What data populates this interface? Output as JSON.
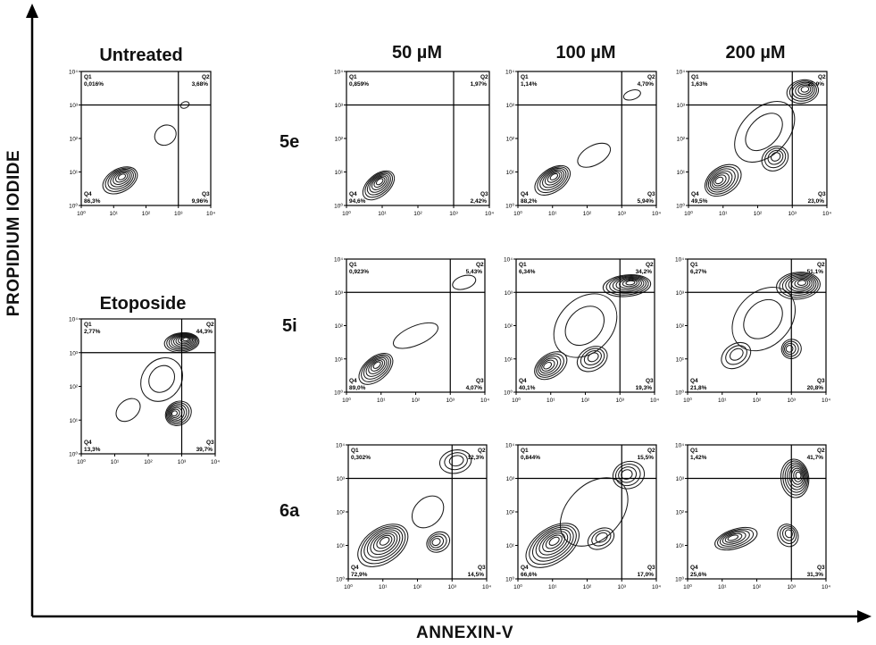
{
  "figure": {
    "x_axis_title": "ANNEXIN-V",
    "y_axis_title": "PROPIDIUM IODIDE",
    "column_headers": [
      "50 µM",
      "100 µM",
      "200 µM"
    ],
    "row_labels": [
      "5e",
      "5i",
      "6a"
    ],
    "control_labels": [
      "Untreated",
      "Etoposide"
    ],
    "colors": {
      "axis": "#000000",
      "contour": "#1a1a1a",
      "background": "#ffffff"
    }
  },
  "chart_data": [
    {
      "type": "contour",
      "panel": "untreated",
      "title": "Untreated",
      "x_ticks": [
        "10⁰",
        "10¹",
        "10²",
        "10³",
        "10⁴"
      ],
      "y_ticks": [
        "10⁰",
        "10¹",
        "10²",
        "10³",
        "10⁴"
      ],
      "x_scale": "log",
      "y_scale": "log",
      "xlim": [
        1,
        10000
      ],
      "ylim": [
        1,
        10000
      ],
      "gate": {
        "x": 1000,
        "y": 1000
      },
      "quadrants": {
        "Q1": "0,016%",
        "Q2": "3,68%",
        "Q3": "9,96%",
        "Q4": "86,3%"
      },
      "populations": [
        {
          "x": 1.2,
          "y": 0.75,
          "sx": 0.5,
          "sy": 0.3,
          "levels": 7,
          "rot": 0.5
        },
        {
          "x": 2.6,
          "y": 2.1,
          "sx": 0.3,
          "sy": 0.25,
          "levels": 1,
          "rot": 0.6
        },
        {
          "x": 3.2,
          "y": 3.0,
          "sx": 0.12,
          "sy": 0.08,
          "levels": 1,
          "rot": 0.4
        }
      ]
    },
    {
      "type": "contour",
      "panel": "etoposide",
      "title": "Etoposide",
      "x_ticks": [
        "10⁰",
        "10¹",
        "10²",
        "10³",
        "10⁴"
      ],
      "y_ticks": [
        "10⁰",
        "10¹",
        "10²",
        "10³",
        "10⁴"
      ],
      "x_scale": "log",
      "y_scale": "log",
      "xlim": [
        1,
        10000
      ],
      "ylim": [
        1,
        10000
      ],
      "gate": {
        "x": 1000,
        "y": 1000
      },
      "quadrants": {
        "Q1": "2,77%",
        "Q2": "44,3%",
        "Q3": "39,7%",
        "Q4": "13,3%"
      },
      "populations": [
        {
          "x": 3.0,
          "y": 3.3,
          "sx": 0.45,
          "sy": 0.25,
          "levels": 9,
          "rot": 0.1
        },
        {
          "x": 2.9,
          "y": 1.2,
          "sx": 0.35,
          "sy": 0.3,
          "levels": 7,
          "rot": 0.6
        },
        {
          "x": 2.4,
          "y": 2.2,
          "sx": 0.6,
          "sy": 0.5,
          "levels": 2,
          "rot": 0.9
        },
        {
          "x": 1.4,
          "y": 1.3,
          "sx": 0.35,
          "sy": 0.25,
          "levels": 1,
          "rot": 0.7
        }
      ]
    },
    {
      "type": "contour",
      "panel": "5e-50",
      "row": "5e",
      "column": "50 µM",
      "x_ticks": [
        "10⁰",
        "10¹",
        "10²",
        "10³",
        "10⁴"
      ],
      "y_ticks": [
        "10⁰",
        "10¹",
        "10²",
        "10³",
        "10⁴"
      ],
      "x_scale": "log",
      "y_scale": "log",
      "xlim": [
        1,
        10000
      ],
      "ylim": [
        1,
        10000
      ],
      "gate": {
        "x": 1000,
        "y": 1000
      },
      "quadrants": {
        "Q1": "0,859%",
        "Q2": "1,97%",
        "Q3": "2,42%",
        "Q4": "94,6%"
      },
      "populations": [
        {
          "x": 0.9,
          "y": 0.6,
          "sx": 0.45,
          "sy": 0.28,
          "levels": 7,
          "rot": 0.7
        }
      ]
    },
    {
      "type": "contour",
      "panel": "5e-100",
      "row": "5e",
      "column": "100 µM",
      "x_ticks": [
        "10⁰",
        "10¹",
        "10²",
        "10³",
        "10⁴"
      ],
      "y_ticks": [
        "10⁰",
        "10¹",
        "10²",
        "10³",
        "10⁴"
      ],
      "x_scale": "log",
      "y_scale": "log",
      "xlim": [
        1,
        10000
      ],
      "ylim": [
        1,
        10000
      ],
      "gate": {
        "x": 1000,
        "y": 1000
      },
      "quadrants": {
        "Q1": "1,14%",
        "Q2": "4,70%",
        "Q3": "5,94%",
        "Q4": "88,2%"
      },
      "populations": [
        {
          "x": 1.0,
          "y": 0.75,
          "sx": 0.5,
          "sy": 0.3,
          "levels": 7,
          "rot": 0.6
        },
        {
          "x": 2.2,
          "y": 1.5,
          "sx": 0.45,
          "sy": 0.25,
          "levels": 1,
          "rot": 0.5
        },
        {
          "x": 3.3,
          "y": 3.3,
          "sx": 0.22,
          "sy": 0.12,
          "levels": 1,
          "rot": 0.3
        }
      ]
    },
    {
      "type": "contour",
      "panel": "5e-200",
      "row": "5e",
      "column": "200 µM",
      "x_ticks": [
        "10⁰",
        "10¹",
        "10²",
        "10³",
        "10⁴"
      ],
      "y_ticks": [
        "10⁰",
        "10¹",
        "10²",
        "10³",
        "10⁴"
      ],
      "x_scale": "log",
      "y_scale": "log",
      "xlim": [
        1,
        10000
      ],
      "ylim": [
        1,
        10000
      ],
      "gate": {
        "x": 1000,
        "y": 1000
      },
      "quadrants": {
        "Q1": "1,63%",
        "Q2": "25,9%",
        "Q3": "23,0%",
        "Q4": "49,5%"
      },
      "populations": [
        {
          "x": 3.3,
          "y": 3.4,
          "sx": 0.4,
          "sy": 0.3,
          "levels": 6,
          "rot": 0.2
        },
        {
          "x": 1.0,
          "y": 0.75,
          "sx": 0.5,
          "sy": 0.35,
          "levels": 7,
          "rot": 0.6
        },
        {
          "x": 2.5,
          "y": 1.4,
          "sx": 0.35,
          "sy": 0.3,
          "levels": 4,
          "rot": 0.6
        },
        {
          "x": 2.2,
          "y": 2.2,
          "sx": 0.9,
          "sy": 0.6,
          "levels": 2,
          "rot": 0.8
        }
      ]
    },
    {
      "type": "contour",
      "panel": "5i-50",
      "row": "5i",
      "column": "50 µM",
      "x_ticks": [
        "10⁰",
        "10¹",
        "10²",
        "10³",
        "10⁴"
      ],
      "y_ticks": [
        "10⁰",
        "10¹",
        "10²",
        "10³",
        "10⁴"
      ],
      "x_scale": "log",
      "y_scale": "log",
      "xlim": [
        1,
        10000
      ],
      "ylim": [
        1,
        10000
      ],
      "gate": {
        "x": 1000,
        "y": 1000
      },
      "quadrants": {
        "Q1": "0,923%",
        "Q2": "5,43%",
        "Q3": "4,07%",
        "Q4": "89,0%"
      },
      "populations": [
        {
          "x": 0.85,
          "y": 0.7,
          "sx": 0.5,
          "sy": 0.3,
          "levels": 7,
          "rot": 0.7
        },
        {
          "x": 2.0,
          "y": 1.7,
          "sx": 0.6,
          "sy": 0.25,
          "levels": 1,
          "rot": 0.4
        },
        {
          "x": 3.4,
          "y": 3.3,
          "sx": 0.3,
          "sy": 0.17,
          "levels": 1,
          "rot": 0.3
        }
      ]
    },
    {
      "type": "contour",
      "panel": "5i-100",
      "row": "5i",
      "column": "100 µM",
      "x_ticks": [
        "10⁰",
        "10¹",
        "10²",
        "10³",
        "10⁴"
      ],
      "y_ticks": [
        "10⁰",
        "10¹",
        "10²",
        "10³",
        "10⁴"
      ],
      "x_scale": "log",
      "y_scale": "log",
      "xlim": [
        1,
        10000
      ],
      "ylim": [
        1,
        10000
      ],
      "gate": {
        "x": 1000,
        "y": 1000
      },
      "quadrants": {
        "Q1": "6,34%",
        "Q2": "34,2%",
        "Q3": "19,3%",
        "Q4": "40,1%"
      },
      "populations": [
        {
          "x": 3.2,
          "y": 3.2,
          "sx": 0.6,
          "sy": 0.28,
          "levels": 8,
          "rot": 0.1
        },
        {
          "x": 1.0,
          "y": 0.8,
          "sx": 0.45,
          "sy": 0.3,
          "levels": 6,
          "rot": 0.6
        },
        {
          "x": 2.2,
          "y": 1.0,
          "sx": 0.4,
          "sy": 0.3,
          "levels": 4,
          "rot": 0.5
        },
        {
          "x": 2.0,
          "y": 2.0,
          "sx": 0.9,
          "sy": 0.7,
          "levels": 2,
          "rot": 0.8
        }
      ]
    },
    {
      "type": "contour",
      "panel": "5i-200",
      "row": "5i",
      "column": "200 µM",
      "x_ticks": [
        "10⁰",
        "10¹",
        "10²",
        "10³",
        "10⁴"
      ],
      "y_ticks": [
        "10⁰",
        "10¹",
        "10²",
        "10³",
        "10⁴"
      ],
      "x_scale": "log",
      "y_scale": "log",
      "xlim": [
        1,
        10000
      ],
      "ylim": [
        1,
        10000
      ],
      "gate": {
        "x": 1000,
        "y": 1000
      },
      "quadrants": {
        "Q1": "6,27%",
        "Q2": "51,1%",
        "Q3": "20,8%",
        "Q4": "21,8%"
      },
      "populations": [
        {
          "x": 3.2,
          "y": 3.2,
          "sx": 0.55,
          "sy": 0.35,
          "levels": 8,
          "rot": 0.1
        },
        {
          "x": 3.0,
          "y": 1.3,
          "sx": 0.25,
          "sy": 0.25,
          "levels": 4,
          "rot": 0.5
        },
        {
          "x": 1.4,
          "y": 1.1,
          "sx": 0.4,
          "sy": 0.3,
          "levels": 3,
          "rot": 0.6
        },
        {
          "x": 2.2,
          "y": 2.2,
          "sx": 0.9,
          "sy": 0.7,
          "levels": 2,
          "rot": 0.8
        }
      ]
    },
    {
      "type": "contour",
      "panel": "6a-50",
      "row": "6a",
      "column": "50 µM",
      "x_ticks": [
        "10⁰",
        "10¹",
        "10²",
        "10³",
        "10⁴"
      ],
      "y_ticks": [
        "10⁰",
        "10¹",
        "10²",
        "10³",
        "10⁴"
      ],
      "x_scale": "log",
      "y_scale": "log",
      "xlim": [
        1,
        10000
      ],
      "ylim": [
        1,
        10000
      ],
      "gate": {
        "x": 1000,
        "y": 1000
      },
      "quadrants": {
        "Q1": "0,302%",
        "Q2": "12,3%",
        "Q3": "14,5%",
        "Q4": "72,9%"
      },
      "populations": [
        {
          "x": 1.0,
          "y": 1.0,
          "sx": 0.7,
          "sy": 0.45,
          "levels": 8,
          "rot": 0.6
        },
        {
          "x": 2.6,
          "y": 1.1,
          "sx": 0.3,
          "sy": 0.25,
          "levels": 4,
          "rot": 0.5
        },
        {
          "x": 3.1,
          "y": 3.5,
          "sx": 0.4,
          "sy": 0.3,
          "levels": 3,
          "rot": 0.2
        },
        {
          "x": 2.3,
          "y": 2.0,
          "sx": 0.45,
          "sy": 0.35,
          "levels": 1,
          "rot": 0.8
        }
      ]
    },
    {
      "type": "contour",
      "panel": "6a-100",
      "row": "6a",
      "column": "100 µM",
      "x_ticks": [
        "10⁰",
        "10¹",
        "10²",
        "10³",
        "10⁴"
      ],
      "y_ticks": [
        "10⁰",
        "10¹",
        "10²",
        "10³",
        "10⁴"
      ],
      "x_scale": "log",
      "y_scale": "log",
      "xlim": [
        1,
        10000
      ],
      "ylim": [
        1,
        10000
      ],
      "gate": {
        "x": 1000,
        "y": 1000
      },
      "quadrants": {
        "Q1": "0,844%",
        "Q2": "15,5%",
        "Q3": "17,0%",
        "Q4": "66,6%"
      },
      "populations": [
        {
          "x": 1.0,
          "y": 1.0,
          "sx": 0.75,
          "sy": 0.45,
          "levels": 8,
          "rot": 0.6
        },
        {
          "x": 3.2,
          "y": 3.1,
          "sx": 0.4,
          "sy": 0.35,
          "levels": 4,
          "rot": 0.3
        },
        {
          "x": 2.4,
          "y": 1.2,
          "sx": 0.35,
          "sy": 0.25,
          "levels": 3,
          "rot": 0.5
        },
        {
          "x": 2.2,
          "y": 2.0,
          "sx": 1.0,
          "sy": 0.7,
          "levels": 1,
          "rot": 0.8
        }
      ]
    },
    {
      "type": "contour",
      "panel": "6a-200",
      "row": "6a",
      "column": "200 µM",
      "x_ticks": [
        "10⁰",
        "10¹",
        "10²",
        "10³",
        "10⁴"
      ],
      "y_ticks": [
        "10⁰",
        "10¹",
        "10²",
        "10³",
        "10⁴"
      ],
      "x_scale": "log",
      "y_scale": "log",
      "xlim": [
        1,
        10000
      ],
      "ylim": [
        1,
        10000
      ],
      "gate": {
        "x": 1000,
        "y": 1000
      },
      "quadrants": {
        "Q1": "1,42%",
        "Q2": "41,7%",
        "Q3": "31,3%",
        "Q4": "25,6%"
      },
      "populations": [
        {
          "x": 3.1,
          "y": 3.0,
          "sx": 0.35,
          "sy": 0.5,
          "levels": 8,
          "rot": 0.1
        },
        {
          "x": 1.4,
          "y": 1.2,
          "sx": 0.55,
          "sy": 0.25,
          "levels": 6,
          "rot": 0.3
        },
        {
          "x": 2.9,
          "y": 1.3,
          "sx": 0.25,
          "sy": 0.3,
          "levels": 4,
          "rot": 0.5
        }
      ]
    }
  ]
}
